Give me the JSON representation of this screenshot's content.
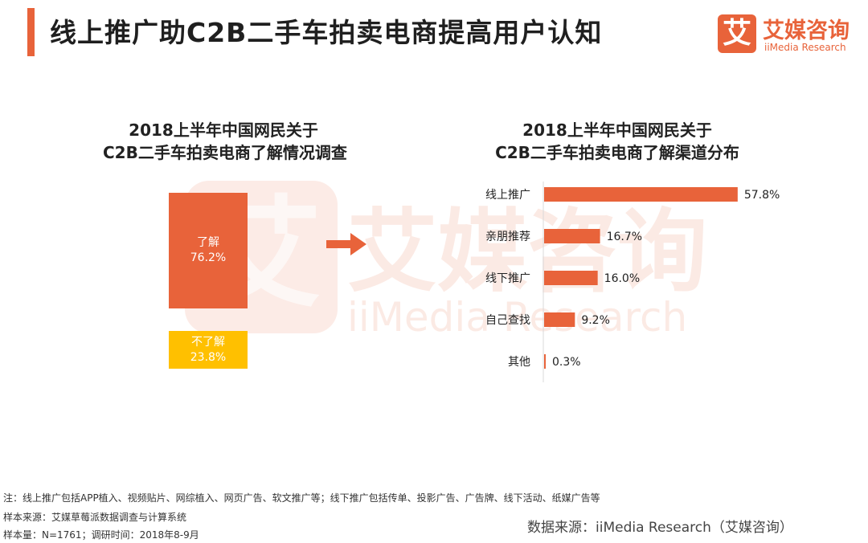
{
  "header": {
    "title": "线上推广助C2B二手车拍卖电商提高用户认知",
    "logo_mark": "艾",
    "logo_cn": "艾媒咨询",
    "logo_en": "iiMedia Research"
  },
  "watermark": {
    "cn": "艾媒咨询",
    "en": "iiMedia Research",
    "mark": "艾"
  },
  "left_chart": {
    "title_line1": "2018上半年中国网民关于",
    "title_line2": "C2B二手车拍卖电商了解情况调查",
    "aware_label": "了解",
    "aware_value": "76.2%",
    "unaware_label": "不了解",
    "unaware_value": "23.8%"
  },
  "right_chart": {
    "title_line1": "2018上半年中国网民关于",
    "title_line2": "C2B二手车拍卖电商了解渠道分布"
  },
  "chart_data": [
    {
      "type": "bar",
      "orientation": "stacked-block",
      "categories": [
        "了解",
        "不了解"
      ],
      "values": [
        76.2,
        23.8
      ],
      "unit": "%",
      "title": "2018上半年中国网民关于 C2B二手车拍卖电商了解情况调查",
      "colors": [
        "#e8633a",
        "#ffc000"
      ]
    },
    {
      "type": "bar",
      "orientation": "horizontal",
      "categories": [
        "线上推广",
        "亲朋推荐",
        "线下推广",
        "自己查找",
        "其他"
      ],
      "values": [
        57.8,
        16.7,
        16.0,
        9.2,
        0.3
      ],
      "labels": [
        "57.8%",
        "16.7%",
        "16.0%",
        "9.2%",
        "0.3%"
      ],
      "unit": "%",
      "title": "2018上半年中国网民关于 C2B二手车拍卖电商了解渠道分布",
      "xlim": [
        0,
        60
      ],
      "color": "#e8633a",
      "grid": false
    }
  ],
  "footer": {
    "note": "注：线上推广包括APP植入、视频贴片、网综植入、网页广告、软文推广等；线下推广包括传单、投影广告、广告牌、线下活动、纸媒广告等",
    "sample_source": "样本来源：艾媒草莓派数据调查与计算系统",
    "sample_size": "样本量：N=1761；调研时间：2018年8-9月",
    "data_source": "数据来源：iiMedia Research（艾媒咨询）"
  },
  "colors": {
    "accent": "#e8633a",
    "secondary": "#ffc000"
  }
}
